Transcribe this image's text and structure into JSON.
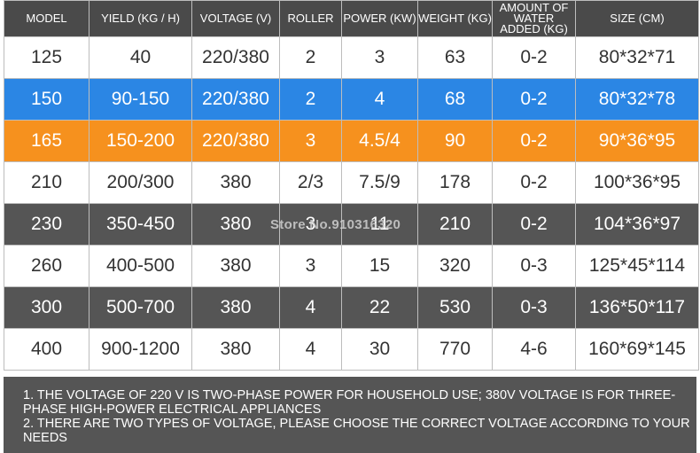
{
  "table": {
    "headers": [
      "MODEL",
      "YIELD (KG / H)",
      "VOLTAGE (V)",
      "ROLLER",
      "POWER (KW)",
      "WEIGHT (KG)",
      "AMOUNT OF WATER ADDED (KG)",
      "SIZE (CM)"
    ],
    "rows": [
      {
        "model": "125",
        "yield": "40",
        "voltage": "220/380",
        "roller": "2",
        "power": "3",
        "weight": "63",
        "water": "0-2",
        "size": "80*32*71",
        "style": "white"
      },
      {
        "model": "150",
        "yield": "90-150",
        "voltage": "220/380",
        "roller": "2",
        "power": "4",
        "weight": "68",
        "water": "0-2",
        "size": "80*32*78",
        "style": "blue"
      },
      {
        "model": "165",
        "yield": "150-200",
        "voltage": "220/380",
        "roller": "3",
        "power": "4.5/4",
        "weight": "90",
        "water": "0-2",
        "size": "90*36*95",
        "style": "orange"
      },
      {
        "model": "210",
        "yield": "200/300",
        "voltage": "380",
        "roller": "2/3",
        "power": "7.5/9",
        "weight": "178",
        "water": "0-2",
        "size": "100*36*95",
        "style": "white"
      },
      {
        "model": "230",
        "yield": "350-450",
        "voltage": "380",
        "roller": "3",
        "power": "11",
        "weight": "210",
        "water": "0-2",
        "size": "104*36*97",
        "style": "dark"
      },
      {
        "model": "260",
        "yield": "400-500",
        "voltage": "380",
        "roller": "3",
        "power": "15",
        "weight": "320",
        "water": "0-3",
        "size": "125*45*114",
        "style": "white"
      },
      {
        "model": "300",
        "yield": "500-700",
        "voltage": "380",
        "roller": "4",
        "power": "22",
        "weight": "530",
        "water": "0-3",
        "size": "136*50*117",
        "style": "dark"
      },
      {
        "model": "400",
        "yield": "900-1200",
        "voltage": "380",
        "roller": "4",
        "power": "30",
        "weight": "770",
        "water": "4-6",
        "size": "160*69*145",
        "style": "white"
      }
    ]
  },
  "watermark": "Store No.910316320",
  "notes": [
    "1. THE VOLTAGE OF 220 V IS TWO-PHASE POWER FOR HOUSEHOLD USE; 380V VOLTAGE IS FOR THREE-PHASE HIGH-POWER ELECTRICAL APPLIANCES",
    "2. THERE ARE TWO TYPES OF VOLTAGE, PLEASE CHOOSE THE CORRECT VOLTAGE ACCORDING TO YOUR NEEDS"
  ],
  "colors": {
    "header": "#4a4a4a",
    "blue": "#2b86e4",
    "orange": "#f6911e",
    "dark": "#555555",
    "white": "#ffffff"
  }
}
